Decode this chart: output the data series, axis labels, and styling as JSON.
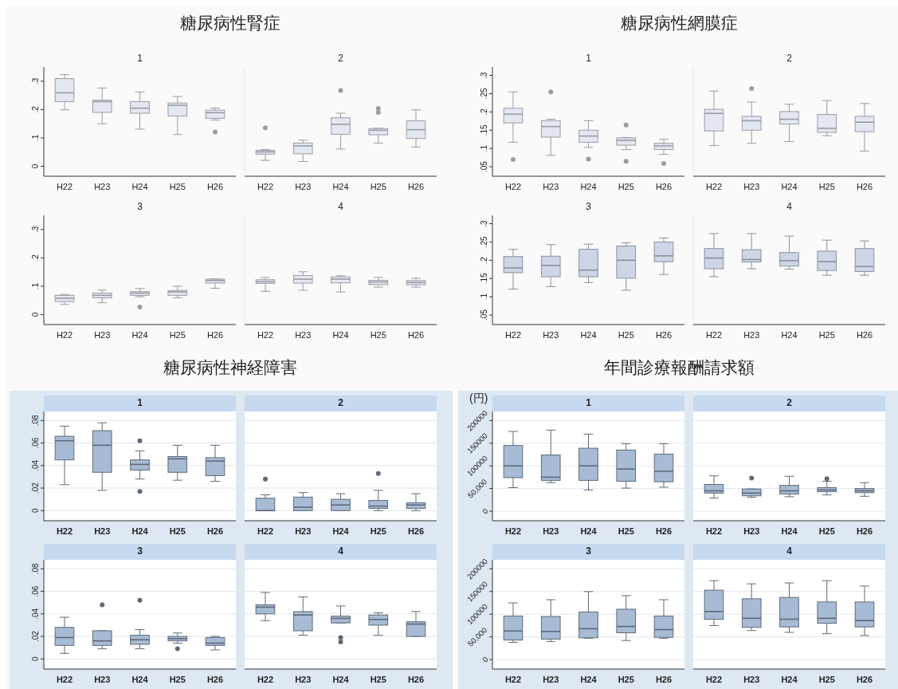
{
  "chart_data": [
    {
      "type": "box",
      "title": "1",
      "annotations": [
        "糖尿病性腎症"
      ],
      "categories": [
        "H22",
        "H23",
        "H24",
        "H25",
        "H26"
      ],
      "color": "#e3e7f1",
      "ylim": [
        -0.035,
        0.35
      ],
      "yticks": [
        {
          "value": 0,
          "label": "0"
        },
        {
          "value": 0.1,
          "label": ".1"
        },
        {
          "value": 0.2,
          "label": ".2"
        },
        {
          "value": 0.3,
          "label": ".3"
        }
      ],
      "boxes": [
        {
          "low": 0.199,
          "q1": 0.228,
          "median": 0.259,
          "q3": 0.309,
          "high": 0.323
        },
        {
          "low": 0.15,
          "q1": 0.19,
          "median": 0.228,
          "q3": 0.233,
          "high": 0.276
        },
        {
          "low": 0.131,
          "q1": 0.187,
          "median": 0.205,
          "q3": 0.228,
          "high": 0.262
        },
        {
          "low": 0.112,
          "q1": 0.177,
          "median": 0.215,
          "q3": 0.223,
          "high": 0.246
        },
        {
          "low": 0.163,
          "q1": 0.169,
          "median": 0.189,
          "q3": 0.198,
          "high": 0.205,
          "outliers": [
            0.121
          ]
        }
      ]
    },
    {
      "type": "box",
      "title": "2",
      "categories": [
        "H22",
        "H23",
        "H24",
        "H25",
        "H26"
      ],
      "color": "#e3e7f1",
      "tick_labels": "x",
      "ylim": [
        -0.035,
        0.35
      ],
      "boxes": [
        {
          "low": 0.021,
          "q1": 0.043,
          "median": 0.051,
          "q3": 0.056,
          "high": 0.059,
          "outliers": [
            0.136
          ]
        },
        {
          "low": 0.017,
          "q1": 0.044,
          "median": 0.072,
          "q3": 0.082,
          "high": 0.092
        },
        {
          "low": 0.061,
          "q1": 0.113,
          "median": 0.148,
          "q3": 0.171,
          "high": 0.187,
          "outliers": [
            0.267
          ]
        },
        {
          "low": 0.082,
          "q1": 0.111,
          "median": 0.127,
          "q3": 0.133,
          "high": 0.134,
          "outliers": [
            0.19,
            0.204
          ]
        },
        {
          "low": 0.068,
          "q1": 0.098,
          "median": 0.129,
          "q3": 0.16,
          "high": 0.199
        }
      ]
    },
    {
      "type": "box",
      "title": "3",
      "categories": [
        "H22",
        "H23",
        "H24",
        "H25",
        "H26"
      ],
      "color": "#e3e7f1",
      "ylim": [
        -0.035,
        0.35
      ],
      "yticks": [
        {
          "value": 0,
          "label": "0"
        },
        {
          "value": 0.1,
          "label": ".1"
        },
        {
          "value": 0.2,
          "label": ".2"
        },
        {
          "value": 0.3,
          "label": ".3"
        }
      ],
      "boxes": [
        {
          "low": 0.036,
          "q1": 0.046,
          "median": 0.058,
          "q3": 0.068,
          "high": 0.071
        },
        {
          "low": 0.042,
          "q1": 0.059,
          "median": 0.068,
          "q3": 0.076,
          "high": 0.087
        },
        {
          "low": 0.063,
          "q1": 0.068,
          "median": 0.076,
          "q3": 0.081,
          "high": 0.092,
          "outliers": [
            0.027
          ]
        },
        {
          "low": 0.059,
          "q1": 0.068,
          "median": 0.08,
          "q3": 0.085,
          "high": 0.1
        },
        {
          "low": 0.093,
          "q1": 0.111,
          "median": 0.12,
          "q3": 0.125,
          "high": 0.126
        }
      ]
    },
    {
      "type": "box",
      "title": "4",
      "categories": [
        "H22",
        "H23",
        "H24",
        "H25",
        "H26"
      ],
      "color": "#e3e7f1",
      "tick_labels": "x",
      "ylim": [
        -0.035,
        0.35
      ],
      "boxes": [
        {
          "low": 0.082,
          "q1": 0.11,
          "median": 0.116,
          "q3": 0.123,
          "high": 0.131
        },
        {
          "low": 0.086,
          "q1": 0.111,
          "median": 0.125,
          "q3": 0.138,
          "high": 0.151
        },
        {
          "low": 0.08,
          "q1": 0.112,
          "median": 0.125,
          "q3": 0.133,
          "high": 0.137
        },
        {
          "low": 0.097,
          "q1": 0.106,
          "median": 0.115,
          "q3": 0.121,
          "high": 0.131
        },
        {
          "low": 0.097,
          "q1": 0.105,
          "median": 0.113,
          "q3": 0.12,
          "high": 0.128
        }
      ]
    },
    {
      "type": "box",
      "title": "1",
      "annotations": [
        "糖尿病性網膜症"
      ],
      "categories": [
        "H22",
        "H23",
        "H24",
        "H25",
        "H26"
      ],
      "color": "#e3e7f1",
      "ylim": [
        0.024,
        0.323
      ],
      "yticks": [
        {
          "value": 0.05,
          "label": ".05"
        },
        {
          "value": 0.1,
          "label": ".1"
        },
        {
          "value": 0.15,
          "label": ".15"
        },
        {
          "value": 0.2,
          "label": ".2"
        },
        {
          "value": 0.25,
          "label": ".25"
        },
        {
          "value": 0.3,
          "label": ".3"
        }
      ],
      "boxes": [
        {
          "low": 0.117,
          "q1": 0.17,
          "median": 0.194,
          "q3": 0.21,
          "high": 0.255,
          "outliers": [
            0.07
          ]
        },
        {
          "low": 0.081,
          "q1": 0.131,
          "median": 0.16,
          "q3": 0.176,
          "high": 0.18,
          "outliers": [
            0.255
          ]
        },
        {
          "low": 0.103,
          "q1": 0.117,
          "median": 0.134,
          "q3": 0.15,
          "high": 0.176,
          "outliers": [
            0.071
          ]
        },
        {
          "low": 0.097,
          "q1": 0.109,
          "median": 0.122,
          "q3": 0.129,
          "high": 0.13,
          "outliers": [
            0.164,
            0.065
          ]
        },
        {
          "low": 0.084,
          "q1": 0.097,
          "median": 0.107,
          "q3": 0.114,
          "high": 0.125,
          "outliers": [
            0.059
          ]
        }
      ]
    },
    {
      "type": "box",
      "title": "2",
      "categories": [
        "H22",
        "H23",
        "H24",
        "H25",
        "H26"
      ],
      "color": "#e3e7f1",
      "tick_labels": "x",
      "ylim": [
        0.024,
        0.323
      ],
      "boxes": [
        {
          "low": 0.108,
          "q1": 0.148,
          "median": 0.196,
          "q3": 0.207,
          "high": 0.257
        },
        {
          "low": 0.114,
          "q1": 0.15,
          "median": 0.176,
          "q3": 0.188,
          "high": 0.227,
          "outliers": [
            0.264
          ]
        },
        {
          "low": 0.119,
          "q1": 0.167,
          "median": 0.18,
          "q3": 0.201,
          "high": 0.221
        },
        {
          "low": 0.135,
          "q1": 0.144,
          "median": 0.155,
          "q3": 0.193,
          "high": 0.231
        },
        {
          "low": 0.093,
          "q1": 0.146,
          "median": 0.172,
          "q3": 0.188,
          "high": 0.223
        }
      ]
    },
    {
      "type": "box",
      "title": "3",
      "categories": [
        "H22",
        "H23",
        "H24",
        "H25",
        "H26"
      ],
      "color": "#cdd5e7",
      "ylim": [
        0.024,
        0.323
      ],
      "yticks": [
        {
          "value": 0.05,
          "label": ".05"
        },
        {
          "value": 0.1,
          "label": ".1"
        },
        {
          "value": 0.15,
          "label": ".15"
        },
        {
          "value": 0.2,
          "label": ".2"
        },
        {
          "value": 0.25,
          "label": ".25"
        },
        {
          "value": 0.3,
          "label": ".3"
        }
      ],
      "boxes": [
        {
          "low": 0.121,
          "q1": 0.166,
          "median": 0.179,
          "q3": 0.21,
          "high": 0.23
        },
        {
          "low": 0.128,
          "q1": 0.155,
          "median": 0.186,
          "q3": 0.211,
          "high": 0.243
        },
        {
          "low": 0.139,
          "q1": 0.155,
          "median": 0.173,
          "q3": 0.23,
          "high": 0.244
        },
        {
          "low": 0.118,
          "q1": 0.151,
          "median": 0.2,
          "q3": 0.239,
          "high": 0.248
        },
        {
          "low": 0.161,
          "q1": 0.196,
          "median": 0.212,
          "q3": 0.25,
          "high": 0.261
        }
      ]
    },
    {
      "type": "box",
      "title": "4",
      "categories": [
        "H22",
        "H23",
        "H24",
        "H25",
        "H26"
      ],
      "color": "#cdd5e7",
      "tick_labels": "x",
      "ylim": [
        0.024,
        0.323
      ],
      "boxes": [
        {
          "low": 0.155,
          "q1": 0.177,
          "median": 0.206,
          "q3": 0.232,
          "high": 0.273
        },
        {
          "low": 0.177,
          "q1": 0.195,
          "median": 0.202,
          "q3": 0.229,
          "high": 0.273
        },
        {
          "low": 0.176,
          "q1": 0.184,
          "median": 0.199,
          "q3": 0.221,
          "high": 0.266
        },
        {
          "low": 0.159,
          "q1": 0.172,
          "median": 0.196,
          "q3": 0.225,
          "high": 0.255
        },
        {
          "low": 0.159,
          "q1": 0.169,
          "median": 0.183,
          "q3": 0.232,
          "high": 0.253
        }
      ]
    },
    {
      "type": "box",
      "title": "1",
      "annotations": [
        "糖尿病性神経障害"
      ],
      "categories": [
        "H22",
        "H23",
        "H24",
        "H25",
        "H26"
      ],
      "color": "#a7bbd5",
      "grid": "y",
      "ylim": [
        -0.009,
        0.088
      ],
      "yticks": [
        {
          "value": 0,
          "label": "0"
        },
        {
          "value": 0.02,
          "label": ".02"
        },
        {
          "value": 0.04,
          "label": ".04"
        },
        {
          "value": 0.06,
          "label": ".06"
        },
        {
          "value": 0.08,
          "label": ".08"
        }
      ],
      "boxes": [
        {
          "low": 0.023,
          "q1": 0.045,
          "median": 0.062,
          "q3": 0.066,
          "high": 0.075
        },
        {
          "low": 0.018,
          "q1": 0.034,
          "median": 0.058,
          "q3": 0.071,
          "high": 0.078
        },
        {
          "low": 0.028,
          "q1": 0.036,
          "median": 0.041,
          "q3": 0.045,
          "high": 0.053,
          "outliers": [
            0.062,
            0.017
          ]
        },
        {
          "low": 0.027,
          "q1": 0.034,
          "median": 0.046,
          "q3": 0.048,
          "high": 0.058
        },
        {
          "low": 0.026,
          "q1": 0.031,
          "median": 0.044,
          "q3": 0.047,
          "high": 0.058
        }
      ]
    },
    {
      "type": "box",
      "title": "2",
      "categories": [
        "H22",
        "H23",
        "H24",
        "H25",
        "H26"
      ],
      "color": "#a7bbd5",
      "grid": "y",
      "tick_labels": "x",
      "ylim": [
        -0.009,
        0.088
      ],
      "yticks": [
        {
          "value": 0,
          "label": null
        },
        {
          "value": 0.02,
          "label": null
        },
        {
          "value": 0.04,
          "label": null
        },
        {
          "value": 0.06,
          "label": null
        },
        {
          "value": 0.08,
          "label": null
        }
      ],
      "boxes": [
        {
          "low": 0,
          "q1": 0,
          "median": 0,
          "q3": 0.011,
          "high": 0.014,
          "outliers": [
            0.028
          ]
        },
        {
          "low": 0,
          "q1": 0,
          "median": 0.003,
          "q3": 0.012,
          "high": 0.016
        },
        {
          "low": 0,
          "q1": 0,
          "median": 0.005,
          "q3": 0.01,
          "high": 0.015
        },
        {
          "low": 0,
          "q1": 0.002,
          "median": 0.004,
          "q3": 0.009,
          "high": 0.018,
          "outliers": [
            0.033
          ]
        },
        {
          "low": 0,
          "q1": 0.002,
          "median": 0.005,
          "q3": 0.007,
          "high": 0.015
        }
      ]
    },
    {
      "type": "box",
      "title": "3",
      "categories": [
        "H22",
        "H23",
        "H24",
        "H25",
        "H26"
      ],
      "color": "#a7bbd5",
      "grid": "y",
      "ylim": [
        -0.009,
        0.088
      ],
      "yticks": [
        {
          "value": 0,
          "label": "0"
        },
        {
          "value": 0.02,
          "label": ".02"
        },
        {
          "value": 0.04,
          "label": ".04"
        },
        {
          "value": 0.06,
          "label": ".06"
        },
        {
          "value": 0.08,
          "label": ".08"
        }
      ],
      "boxes": [
        {
          "low": 0.005,
          "q1": 0.012,
          "median": 0.019,
          "q3": 0.028,
          "high": 0.037
        },
        {
          "low": 0.009,
          "q1": 0.012,
          "median": 0.016,
          "q3": 0.025,
          "high": 0.025,
          "outliers": [
            0.048
          ]
        },
        {
          "low": 0.009,
          "q1": 0.013,
          "median": 0.017,
          "q3": 0.021,
          "high": 0.026,
          "outliers": [
            0.052
          ]
        },
        {
          "low": 0.014,
          "q1": 0.016,
          "median": 0.018,
          "q3": 0.02,
          "high": 0.023,
          "outliers": [
            0.009
          ]
        },
        {
          "low": 0.008,
          "q1": 0.012,
          "median": 0.014,
          "q3": 0.019,
          "high": 0.02
        }
      ]
    },
    {
      "type": "box",
      "title": "4",
      "categories": [
        "H22",
        "H23",
        "H24",
        "H25",
        "H26"
      ],
      "color": "#a7bbd5",
      "grid": "y",
      "tick_labels": "x",
      "ylim": [
        -0.009,
        0.088
      ],
      "yticks": [
        {
          "value": 0,
          "label": null
        },
        {
          "value": 0.02,
          "label": null
        },
        {
          "value": 0.04,
          "label": null
        },
        {
          "value": 0.06,
          "label": null
        },
        {
          "value": 0.08,
          "label": null
        }
      ],
      "boxes": [
        {
          "low": 0.034,
          "q1": 0.04,
          "median": 0.046,
          "q3": 0.048,
          "high": 0.059
        },
        {
          "low": 0.021,
          "q1": 0.025,
          "median": 0.039,
          "q3": 0.042,
          "high": 0.055
        },
        {
          "low": 0.032,
          "q1": 0.032,
          "median": 0.036,
          "q3": 0.038,
          "high": 0.047,
          "outliers": [
            0.019,
            0.015
          ]
        },
        {
          "low": 0.021,
          "q1": 0.03,
          "median": 0.035,
          "q3": 0.039,
          "high": 0.041
        },
        {
          "low": 0.02,
          "q1": 0.02,
          "median": 0.031,
          "q3": 0.033,
          "high": 0.042
        }
      ]
    },
    {
      "type": "box",
      "title": "1",
      "annotations": [
        "年間診療報酬請求額"
      ],
      "ylabel": "(円)",
      "categories": [
        "H22",
        "H23",
        "H24",
        "H25",
        "H26"
      ],
      "color": "#a7bbd5",
      "grid": "y",
      "ylim": [
        -21000,
        220000
      ],
      "yticks": [
        0,
        {
          "value": 50000,
          "label": "50,000"
        },
        100000,
        150000,
        200000
      ],
      "boxes": [
        {
          "low": 52000,
          "q1": 74000,
          "median": 100000,
          "q3": 145000,
          "high": 176000
        },
        {
          "low": 63000,
          "q1": 68000,
          "median": 75000,
          "q3": 124000,
          "high": 179000
        },
        {
          "low": 47000,
          "q1": 68000,
          "median": 100000,
          "q3": 139000,
          "high": 170000
        },
        {
          "low": 51000,
          "q1": 66000,
          "median": 93000,
          "q3": 135000,
          "high": 149000
        },
        {
          "low": 53000,
          "q1": 65000,
          "median": 88000,
          "q3": 126000,
          "high": 149000
        }
      ]
    },
    {
      "type": "box",
      "title": "2",
      "categories": [
        "H22",
        "H23",
        "H24",
        "H25",
        "H26"
      ],
      "color": "#a7bbd5",
      "grid": "y",
      "tick_labels": "x",
      "ylim": [
        -21000,
        220000
      ],
      "yticks": [
        {
          "value": 0,
          "label": null
        },
        {
          "value": 50000,
          "label": null
        },
        {
          "value": 100000,
          "label": null
        },
        {
          "value": 150000,
          "label": null
        },
        {
          "value": 200000,
          "label": null
        }
      ],
      "boxes": [
        {
          "low": 29000,
          "q1": 40000,
          "median": 45000,
          "q3": 59000,
          "high": 78000
        },
        {
          "low": 31000,
          "q1": 34000,
          "median": 40000,
          "q3": 49000,
          "high": 49000,
          "outliers": [
            73000
          ]
        },
        {
          "low": 32000,
          "q1": 38000,
          "median": 45000,
          "q3": 57000,
          "high": 77000
        },
        {
          "low": 36000,
          "q1": 43000,
          "median": 47000,
          "q3": 52000,
          "high": 66000,
          "outliers": [
            72000
          ]
        },
        {
          "low": 33000,
          "q1": 41000,
          "median": 45000,
          "q3": 50000,
          "high": 63000
        }
      ]
    },
    {
      "type": "box",
      "title": "3",
      "categories": [
        "H22",
        "H23",
        "H24",
        "H25",
        "H26"
      ],
      "color": "#a7bbd5",
      "grid": "y",
      "ylim": [
        -21000,
        220000
      ],
      "yticks": [
        0,
        {
          "value": 50000,
          "label": "50,000"
        },
        100000,
        150000,
        200000
      ],
      "boxes": [
        {
          "low": 38000,
          "q1": 43000,
          "median": 63000,
          "q3": 96000,
          "high": 125000
        },
        {
          "low": 40000,
          "q1": 45000,
          "median": 62000,
          "q3": 95000,
          "high": 132000
        },
        {
          "low": 47000,
          "q1": 48000,
          "median": 68000,
          "q3": 105000,
          "high": 150000
        },
        {
          "low": 42000,
          "q1": 59000,
          "median": 73000,
          "q3": 111000,
          "high": 141000
        },
        {
          "low": 47000,
          "q1": 49000,
          "median": 66000,
          "q3": 96000,
          "high": 132000
        }
      ]
    },
    {
      "type": "box",
      "title": "4",
      "categories": [
        "H22",
        "H23",
        "H24",
        "H25",
        "H26"
      ],
      "color": "#a7bbd5",
      "grid": "y",
      "tick_labels": "x",
      "ylim": [
        -21000,
        220000
      ],
      "yticks": [
        {
          "value": 0,
          "label": null
        },
        {
          "value": 50000,
          "label": null
        },
        {
          "value": 100000,
          "label": null
        },
        {
          "value": 150000,
          "label": null
        },
        {
          "value": 200000,
          "label": null
        }
      ],
      "boxes": [
        {
          "low": 75000,
          "q1": 89000,
          "median": 106000,
          "q3": 153000,
          "high": 174000
        },
        {
          "low": 64000,
          "q1": 71000,
          "median": 91000,
          "q3": 134000,
          "high": 167000
        },
        {
          "low": 60000,
          "q1": 72000,
          "median": 89000,
          "q3": 137000,
          "high": 169000
        },
        {
          "low": 57000,
          "q1": 80000,
          "median": 91000,
          "q3": 127000,
          "high": 174000
        },
        {
          "low": 53000,
          "q1": 72000,
          "median": 86000,
          "q3": 127000,
          "high": 162000
        }
      ]
    }
  ]
}
